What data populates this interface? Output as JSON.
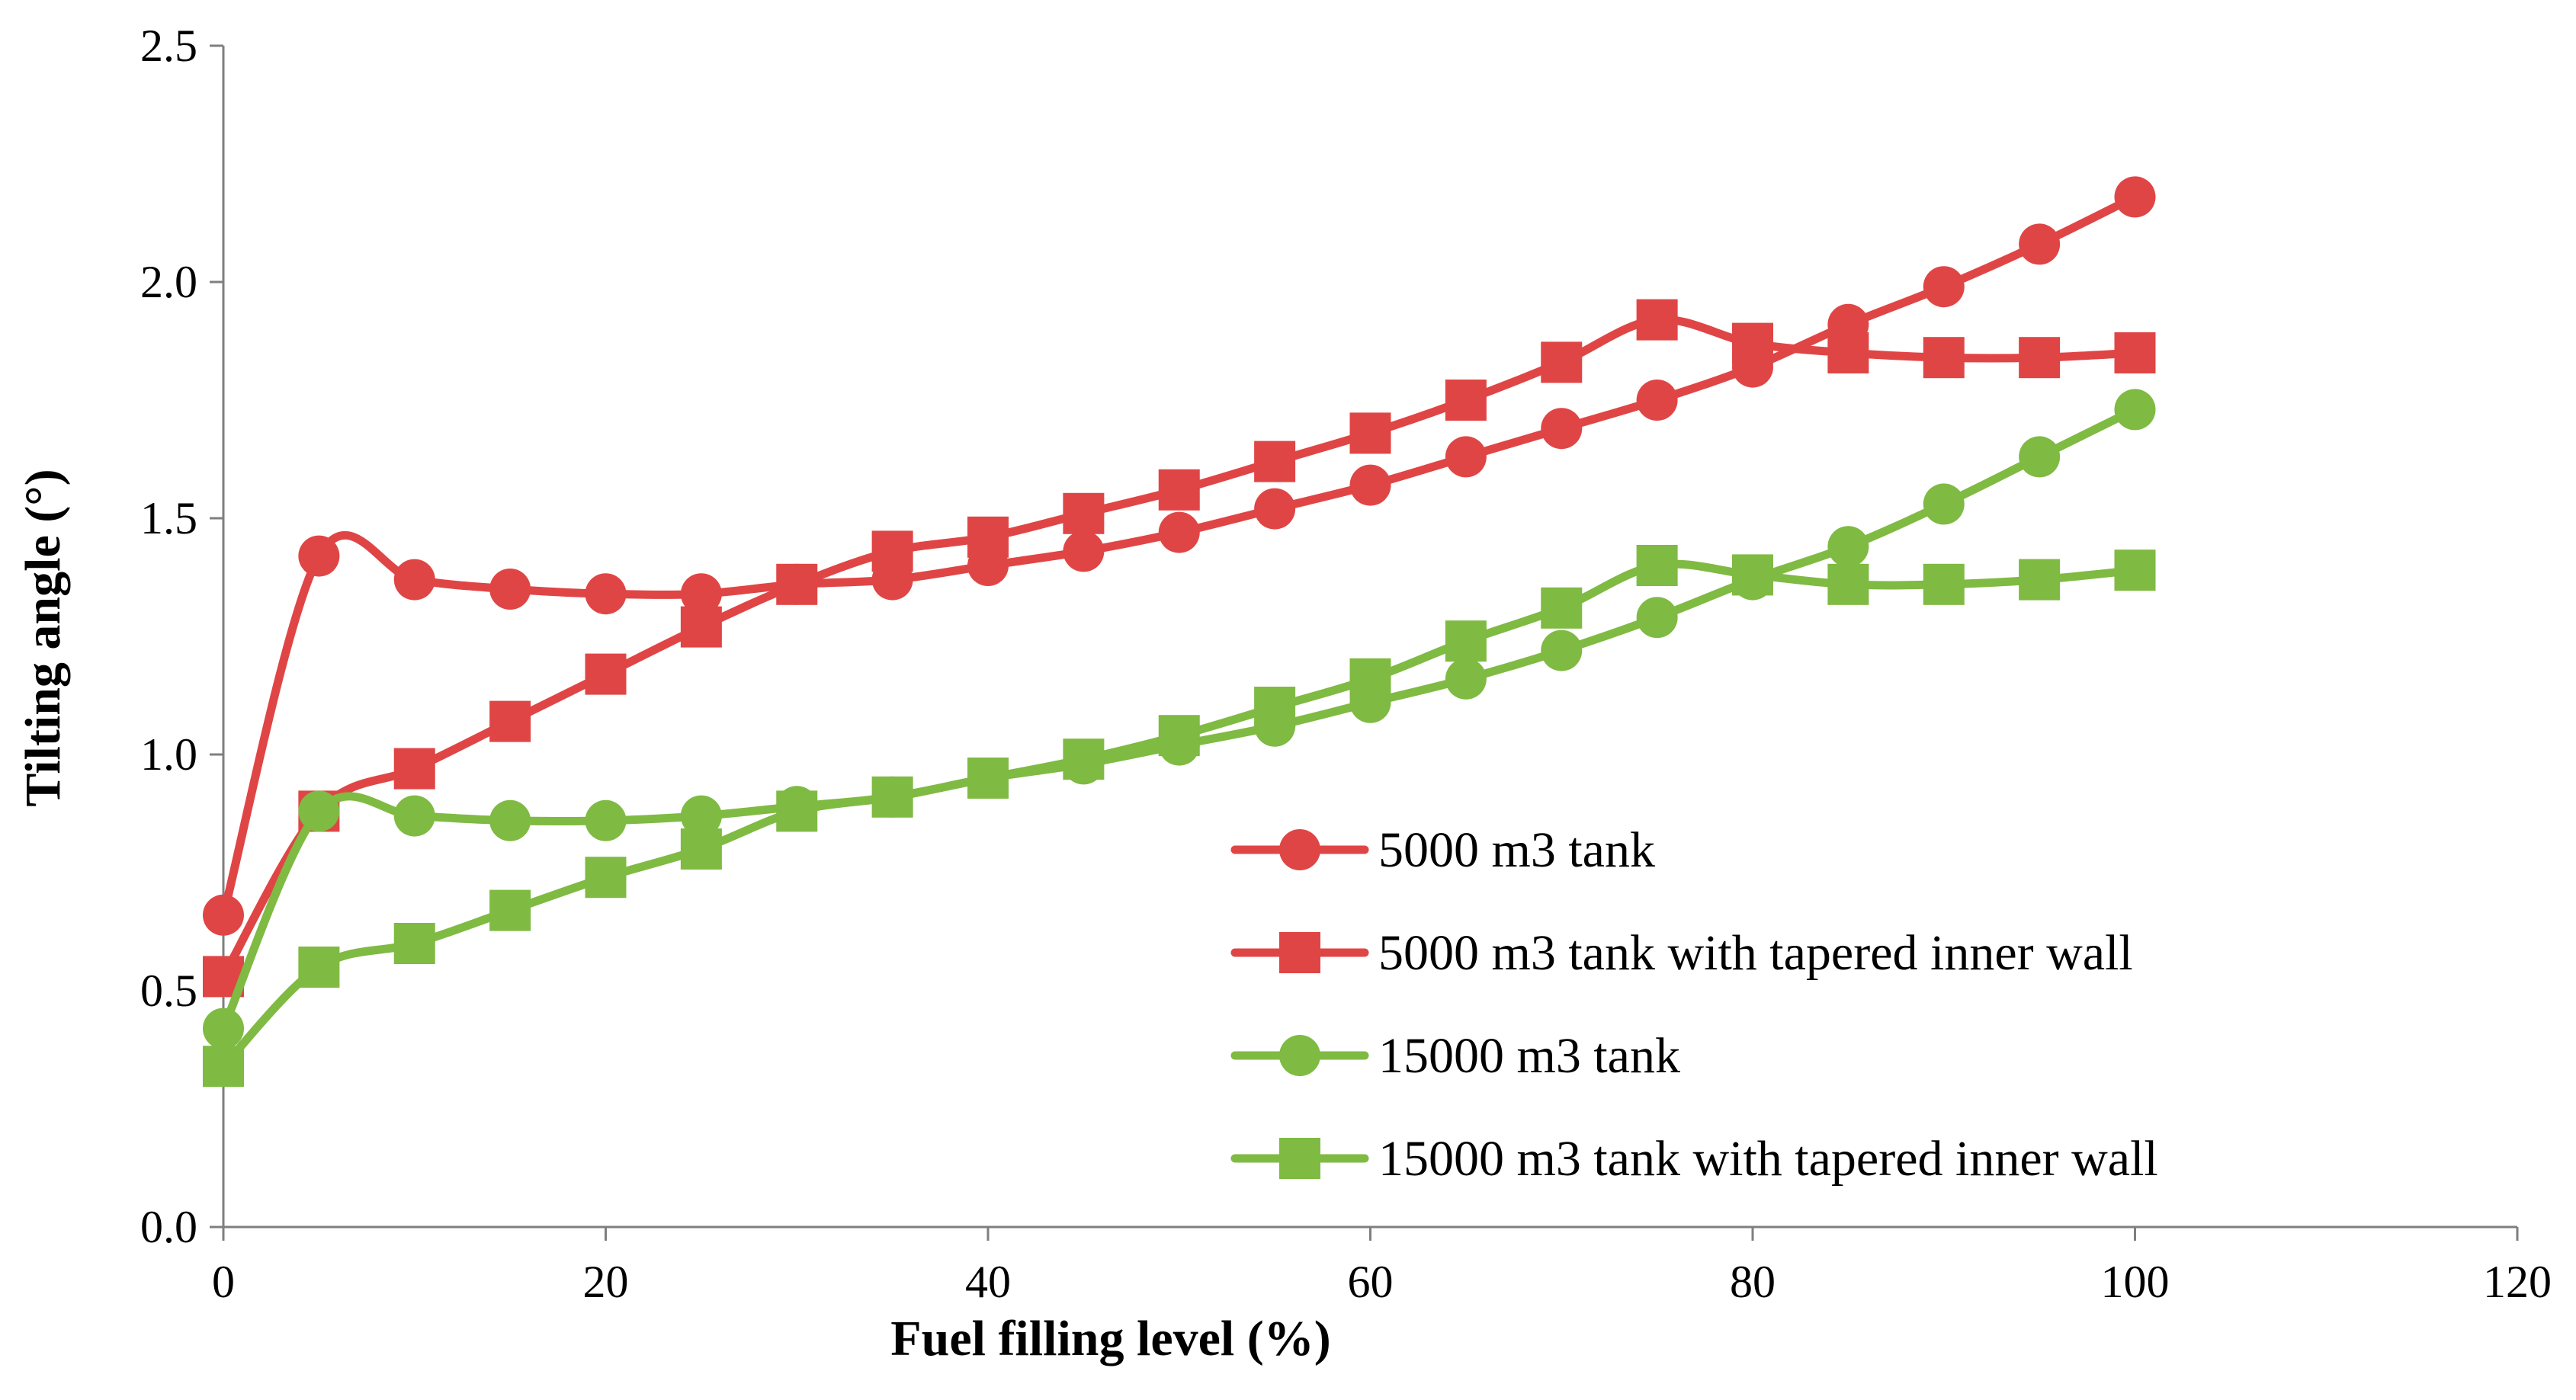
{
  "chart_data": {
    "type": "line",
    "title": "",
    "xlabel": "Fuel filling level (%)",
    "ylabel": "Tilting angle (°)",
    "xlim": [
      0,
      120
    ],
    "ylim": [
      0,
      2.5
    ],
    "xticks": [
      "0",
      "20",
      "40",
      "60",
      "80",
      "100",
      "120"
    ],
    "yticks": [
      "0.0",
      "0.5",
      "1.0",
      "1.5",
      "2.0",
      "2.5"
    ],
    "grid": false,
    "legend_position": "bottom-right",
    "x": [
      0,
      5,
      10,
      15,
      20,
      25,
      30,
      35,
      40,
      45,
      50,
      55,
      60,
      65,
      70,
      75,
      80,
      85,
      90,
      95,
      100
    ],
    "series": [
      {
        "name": "5000 m3 tank",
        "color": "#e04545",
        "marker": "circle",
        "values": [
          0.66,
          1.42,
          1.37,
          1.35,
          1.34,
          1.34,
          1.36,
          1.37,
          1.4,
          1.43,
          1.47,
          1.52,
          1.57,
          1.63,
          1.69,
          1.75,
          1.82,
          1.91,
          1.99,
          2.08,
          2.18
        ]
      },
      {
        "name": "5000 m3 tank with tapered inner wall",
        "color": "#e04545",
        "marker": "square",
        "values": [
          0.53,
          0.88,
          0.97,
          1.07,
          1.17,
          1.27,
          1.36,
          1.43,
          1.46,
          1.51,
          1.56,
          1.62,
          1.68,
          1.75,
          1.83,
          1.92,
          1.87,
          1.85,
          1.84,
          1.84,
          1.85
        ]
      },
      {
        "name": "15000 m3 tank",
        "color": "#7fba42",
        "marker": "circle",
        "values": [
          0.42,
          0.88,
          0.87,
          0.86,
          0.86,
          0.87,
          0.89,
          0.91,
          0.95,
          0.98,
          1.02,
          1.06,
          1.11,
          1.16,
          1.22,
          1.29,
          1.37,
          1.44,
          1.53,
          1.63,
          1.73
        ]
      },
      {
        "name": "15000 m3 tank with tapered inner wall",
        "color": "#7fba42",
        "marker": "square",
        "values": [
          0.34,
          0.55,
          0.6,
          0.67,
          0.74,
          0.8,
          0.88,
          0.91,
          0.95,
          0.99,
          1.04,
          1.1,
          1.16,
          1.24,
          1.31,
          1.4,
          1.38,
          1.36,
          1.36,
          1.37,
          1.39
        ]
      }
    ]
  }
}
